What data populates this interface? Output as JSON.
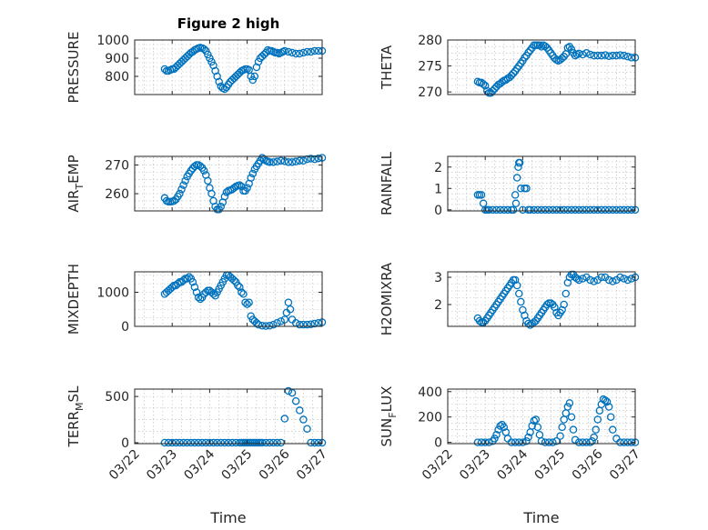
{
  "marker_color": "#0072BD",
  "chart_data": [
    {
      "type": "scatter",
      "title": "Figure 2 high",
      "ylabel": "PRESSURE",
      "ylabel_sub": "",
      "ylabel_tail": "",
      "xlabel": "",
      "ylim": [
        700,
        1000
      ],
      "yticks": [
        800,
        900,
        1000
      ],
      "xlim": [
        0,
        5
      ],
      "xticks": [
        "03/22",
        "03/23",
        "03/24",
        "03/25",
        "03/26",
        "03/27"
      ],
      "x": [
        0.8,
        0.85,
        0.9,
        0.95,
        1.0,
        1.05,
        1.1,
        1.15,
        1.2,
        1.25,
        1.3,
        1.35,
        1.4,
        1.45,
        1.5,
        1.55,
        1.6,
        1.65,
        1.7,
        1.75,
        1.8,
        1.85,
        1.9,
        1.95,
        2.0,
        2.05,
        2.1,
        2.15,
        2.2,
        2.25,
        2.3,
        2.35,
        2.4,
        2.45,
        2.5,
        2.55,
        2.6,
        2.65,
        2.7,
        2.75,
        2.8,
        2.85,
        2.9,
        2.95,
        3.0,
        3.05,
        3.1,
        3.15,
        3.2,
        3.25,
        3.3,
        3.35,
        3.4,
        3.45,
        3.5,
        3.55,
        3.6,
        3.65,
        3.7,
        3.75,
        3.8,
        3.85,
        3.9,
        3.95,
        4.0,
        4.1,
        4.2,
        4.3,
        4.4,
        4.5,
        4.6,
        4.7,
        4.8,
        4.9,
        5.0
      ],
      "y": [
        840,
        830,
        830,
        835,
        840,
        840,
        850,
        860,
        870,
        880,
        890,
        900,
        910,
        920,
        930,
        935,
        945,
        950,
        955,
        958,
        955,
        950,
        940,
        920,
        900,
        880,
        860,
        830,
        800,
        770,
        745,
        735,
        730,
        740,
        755,
        770,
        780,
        790,
        800,
        810,
        820,
        830,
        835,
        840,
        840,
        835,
        800,
        780,
        800,
        850,
        880,
        900,
        910,
        920,
        930,
        945,
        940,
        940,
        935,
        930,
        930,
        925,
        930,
        935,
        940,
        935,
        930,
        925,
        925,
        930,
        935,
        935,
        940,
        940,
        940
      ]
    },
    {
      "type": "scatter",
      "title": "",
      "ylabel": "THETA",
      "ylabel_sub": "",
      "ylabel_tail": "",
      "xlabel": "",
      "ylim": [
        269.5,
        280
      ],
      "yticks": [
        270,
        275,
        280
      ],
      "xlim": [
        0,
        5
      ],
      "xticks": [
        "03/22",
        "03/23",
        "03/24",
        "03/25",
        "03/26",
        "03/27"
      ],
      "x": [
        0.8,
        0.85,
        0.9,
        0.95,
        1.0,
        1.05,
        1.1,
        1.15,
        1.2,
        1.25,
        1.3,
        1.35,
        1.4,
        1.45,
        1.5,
        1.55,
        1.6,
        1.65,
        1.7,
        1.75,
        1.8,
        1.85,
        1.9,
        1.95,
        2.0,
        2.05,
        2.1,
        2.15,
        2.2,
        2.25,
        2.3,
        2.35,
        2.4,
        2.45,
        2.5,
        2.55,
        2.6,
        2.65,
        2.7,
        2.75,
        2.8,
        2.85,
        2.9,
        2.95,
        3.0,
        3.05,
        3.1,
        3.15,
        3.2,
        3.25,
        3.3,
        3.35,
        3.4,
        3.45,
        3.5,
        3.6,
        3.7,
        3.8,
        3.9,
        4.0,
        4.1,
        4.2,
        4.3,
        4.4,
        4.5,
        4.6,
        4.7,
        4.8,
        4.9,
        5.0
      ],
      "y": [
        272,
        271.8,
        271.8,
        271.5,
        271.2,
        270.2,
        269.8,
        269.8,
        270.2,
        270.6,
        271,
        271.4,
        271.6,
        271.9,
        272.2,
        272.3,
        272.6,
        272.8,
        273.2,
        273.6,
        274,
        274.5,
        275,
        275.5,
        276,
        276.6,
        277,
        277.6,
        278,
        278.5,
        279,
        279,
        279,
        279,
        278.7,
        279,
        278.8,
        278.5,
        278,
        277.5,
        277,
        276.5,
        276.2,
        276,
        276.2,
        276.5,
        276.8,
        277.3,
        278.5,
        278.7,
        278.2,
        277.5,
        277,
        277.2,
        277.4,
        277.2,
        277.5,
        277.2,
        277,
        277,
        277,
        277.1,
        276.9,
        277,
        277,
        277.1,
        277,
        276.8,
        276.6,
        276.6
      ]
    },
    {
      "type": "scatter",
      "title": "",
      "ylabel": "AIR",
      "ylabel_sub": "T",
      "ylabel_tail": "EMP",
      "xlabel": "",
      "ylim": [
        254,
        273
      ],
      "yticks": [
        260,
        270
      ],
      "xlim": [
        0,
        5
      ],
      "xticks": [
        "03/22",
        "03/23",
        "03/24",
        "03/25",
        "03/26",
        "03/27"
      ],
      "x": [
        0.8,
        0.85,
        0.9,
        0.95,
        1.0,
        1.05,
        1.1,
        1.15,
        1.2,
        1.25,
        1.3,
        1.35,
        1.4,
        1.45,
        1.5,
        1.55,
        1.6,
        1.65,
        1.7,
        1.75,
        1.8,
        1.85,
        1.9,
        1.95,
        2.0,
        2.05,
        2.1,
        2.15,
        2.2,
        2.25,
        2.3,
        2.35,
        2.4,
        2.45,
        2.5,
        2.55,
        2.6,
        2.65,
        2.7,
        2.75,
        2.8,
        2.85,
        2.9,
        2.95,
        3.0,
        3.05,
        3.1,
        3.15,
        3.2,
        3.25,
        3.3,
        3.35,
        3.4,
        3.45,
        3.5,
        3.55,
        3.6,
        3.7,
        3.8,
        3.9,
        4.0,
        4.1,
        4.2,
        4.3,
        4.4,
        4.5,
        4.6,
        4.7,
        4.8,
        4.9,
        5.0
      ],
      "y": [
        258.5,
        257.5,
        257.2,
        257.2,
        257.3,
        257.5,
        258,
        259,
        260,
        261.5,
        263,
        264.5,
        266,
        267,
        268,
        268.8,
        269.5,
        270,
        270,
        269.6,
        269,
        268,
        266.5,
        264.5,
        262,
        260,
        257.5,
        255.5,
        254.5,
        254.5,
        255.5,
        257,
        259,
        260.5,
        261,
        261.2,
        261.5,
        262,
        262.5,
        262.8,
        263,
        262.5,
        261,
        261,
        262,
        263.5,
        265.5,
        267,
        268.5,
        269.5,
        270.5,
        271.5,
        272.5,
        272,
        271.5,
        271.2,
        271,
        271,
        271.2,
        271.5,
        271.3,
        271,
        271,
        271.2,
        271.5,
        271.5,
        272,
        272.2,
        272,
        272.3,
        272.5
      ]
    },
    {
      "type": "scatter",
      "title": "",
      "ylabel": "RAINFALL",
      "ylabel_sub": "",
      "ylabel_tail": "",
      "xlabel": "",
      "ylim": [
        -0.05,
        2.5
      ],
      "yticks": [
        0,
        1,
        2
      ],
      "xlim": [
        0,
        5
      ],
      "xticks": [
        "03/22",
        "03/23",
        "03/24",
        "03/25",
        "03/26",
        "03/27"
      ],
      "x": [
        0.8,
        0.85,
        0.9,
        0.95,
        1.0,
        1.05,
        1.1,
        1.2,
        1.3,
        1.4,
        1.5,
        1.6,
        1.7,
        1.75,
        1.8,
        1.82,
        1.85,
        1.88,
        1.9,
        1.92,
        1.95,
        2.0,
        2.05,
        2.1,
        2.15,
        2.2,
        2.3,
        2.4,
        2.5,
        2.6,
        2.7,
        2.8,
        2.9,
        3.0,
        3.1,
        3.2,
        3.3,
        3.4,
        3.5,
        3.6,
        3.7,
        3.8,
        3.9,
        4.0,
        4.1,
        4.2,
        4.3,
        4.4,
        4.5,
        4.6,
        4.7,
        4.8,
        4.9,
        5.0
      ],
      "y": [
        0.7,
        0.7,
        0.7,
        0.3,
        0,
        0,
        0,
        0,
        0,
        0,
        0,
        0,
        0,
        0,
        0.7,
        0.3,
        1.5,
        2,
        2.2,
        2.2,
        1,
        0,
        1,
        1,
        0,
        0,
        0,
        0,
        0,
        0,
        0,
        0,
        0,
        0,
        0,
        0,
        0,
        0,
        0,
        0,
        0,
        0,
        0,
        0,
        0,
        0,
        0,
        0,
        0,
        0,
        0,
        0,
        0,
        0
      ]
    },
    {
      "type": "scatter",
      "title": "",
      "ylabel": "MIXDEPTH",
      "ylabel_sub": "",
      "ylabel_tail": "",
      "xlabel": "",
      "ylim": [
        0,
        1600
      ],
      "yticks": [
        0,
        1000
      ],
      "xlim": [
        0,
        5
      ],
      "xticks": [
        "03/22",
        "03/23",
        "03/24",
        "03/25",
        "03/26",
        "03/27"
      ],
      "x": [
        0.8,
        0.85,
        0.9,
        0.95,
        1.0,
        1.05,
        1.1,
        1.15,
        1.2,
        1.25,
        1.3,
        1.35,
        1.4,
        1.45,
        1.5,
        1.55,
        1.6,
        1.65,
        1.7,
        1.75,
        1.8,
        1.85,
        1.9,
        1.95,
        2.0,
        2.05,
        2.1,
        2.15,
        2.2,
        2.25,
        2.3,
        2.35,
        2.4,
        2.45,
        2.5,
        2.55,
        2.6,
        2.65,
        2.7,
        2.75,
        2.8,
        2.85,
        2.9,
        2.95,
        3.0,
        3.05,
        3.1,
        3.15,
        3.2,
        3.25,
        3.3,
        3.4,
        3.5,
        3.6,
        3.7,
        3.8,
        3.9,
        4.0,
        4.05,
        4.1,
        4.15,
        4.2,
        4.3,
        4.4,
        4.5,
        4.6,
        4.7,
        4.8,
        4.9,
        5.0
      ],
      "y": [
        950,
        1000,
        1050,
        1100,
        1150,
        1200,
        1200,
        1250,
        1300,
        1300,
        1350,
        1400,
        1400,
        1450,
        1400,
        1300,
        1150,
        1000,
        850,
        800,
        850,
        950,
        1000,
        1050,
        1050,
        1000,
        950,
        900,
        1000,
        1100,
        1200,
        1300,
        1400,
        1500,
        1500,
        1450,
        1400,
        1350,
        1300,
        1200,
        1150,
        1000,
        950,
        700,
        650,
        700,
        300,
        200,
        150,
        100,
        50,
        20,
        10,
        20,
        50,
        100,
        150,
        200,
        400,
        700,
        500,
        200,
        100,
        50,
        50,
        50,
        60,
        80,
        100,
        120
      ]
    },
    {
      "type": "scatter",
      "title": "",
      "ylabel": "H2OMIXRA",
      "ylabel_sub": "",
      "ylabel_tail": "",
      "xlabel": "",
      "ylim": [
        1.2,
        3.2
      ],
      "yticks": [
        2,
        3
      ],
      "xlim": [
        0,
        5
      ],
      "xticks": [
        "03/22",
        "03/23",
        "03/24",
        "03/25",
        "03/26",
        "03/27"
      ],
      "x": [
        0.8,
        0.85,
        0.9,
        0.95,
        1.0,
        1.05,
        1.1,
        1.15,
        1.2,
        1.25,
        1.3,
        1.35,
        1.4,
        1.45,
        1.5,
        1.55,
        1.6,
        1.65,
        1.7,
        1.75,
        1.8,
        1.85,
        1.9,
        1.95,
        2.0,
        2.05,
        2.1,
        2.15,
        2.2,
        2.25,
        2.3,
        2.35,
        2.4,
        2.45,
        2.5,
        2.55,
        2.6,
        2.65,
        2.7,
        2.75,
        2.8,
        2.85,
        2.9,
        2.95,
        3.0,
        3.05,
        3.1,
        3.15,
        3.2,
        3.25,
        3.3,
        3.35,
        3.4,
        3.45,
        3.5,
        3.6,
        3.7,
        3.8,
        3.9,
        4.0,
        4.1,
        4.2,
        4.3,
        4.4,
        4.5,
        4.6,
        4.7,
        4.8,
        4.9,
        5.0
      ],
      "y": [
        1.5,
        1.4,
        1.35,
        1.35,
        1.4,
        1.5,
        1.6,
        1.7,
        1.8,
        1.9,
        2.0,
        2.1,
        2.2,
        2.3,
        2.4,
        2.5,
        2.6,
        2.7,
        2.8,
        2.9,
        2.9,
        2.7,
        2.4,
        2.1,
        1.8,
        1.6,
        1.4,
        1.3,
        1.25,
        1.3,
        1.35,
        1.4,
        1.5,
        1.6,
        1.7,
        1.8,
        1.9,
        2.0,
        2.05,
        2.05,
        2.0,
        1.9,
        1.7,
        1.6,
        1.7,
        1.8,
        2.0,
        2.4,
        2.8,
        3.0,
        3.1,
        3.1,
        3.0,
        2.95,
        2.9,
        2.95,
        3.0,
        2.9,
        2.85,
        2.9,
        3.0,
        3.0,
        2.9,
        2.85,
        2.9,
        3.0,
        2.95,
        2.9,
        2.95,
        3.0
      ]
    },
    {
      "type": "scatter",
      "title": "",
      "ylabel": "TERR",
      "ylabel_sub": "M",
      "ylabel_tail": "SL",
      "xlabel": "Time",
      "ylim": [
        -10,
        580
      ],
      "yticks": [
        0,
        500
      ],
      "xlim": [
        0,
        5
      ],
      "xticks": [
        "03/22",
        "03/23",
        "03/24",
        "03/25",
        "03/26",
        "03/27"
      ],
      "x": [
        0.8,
        0.9,
        1.0,
        1.1,
        1.2,
        1.3,
        1.4,
        1.5,
        1.6,
        1.7,
        1.8,
        1.9,
        2.0,
        2.1,
        2.2,
        2.3,
        2.4,
        2.5,
        2.6,
        2.7,
        2.8,
        2.85,
        2.9,
        2.95,
        3.0,
        3.05,
        3.1,
        3.15,
        3.2,
        3.25,
        3.3,
        3.35,
        3.4,
        3.5,
        3.6,
        3.7,
        3.8,
        3.9,
        4.0,
        4.1,
        4.2,
        4.3,
        4.4,
        4.5,
        4.6,
        4.7,
        4.8,
        4.9,
        5.0
      ],
      "y": [
        0,
        0,
        0,
        0,
        0,
        0,
        0,
        0,
        0,
        0,
        0,
        0,
        0,
        0,
        0,
        0,
        0,
        0,
        0,
        0,
        0,
        0,
        0,
        0,
        0,
        0,
        0,
        0,
        0,
        0,
        0,
        0,
        0,
        0,
        0,
        0,
        0,
        0,
        260,
        560,
        540,
        450,
        350,
        250,
        150,
        0,
        0,
        0,
        0
      ]
    },
    {
      "type": "scatter",
      "title": "",
      "ylabel": "SUN",
      "ylabel_sub": "F",
      "ylabel_tail": "LUX",
      "xlabel": "Time",
      "ylim": [
        -10,
        420
      ],
      "yticks": [
        0,
        200,
        400
      ],
      "xlim": [
        0,
        5
      ],
      "xticks": [
        "03/22",
        "03/23",
        "03/24",
        "03/25",
        "03/26",
        "03/27"
      ],
      "x": [
        0.8,
        0.9,
        1.0,
        1.1,
        1.2,
        1.25,
        1.3,
        1.35,
        1.4,
        1.45,
        1.5,
        1.55,
        1.6,
        1.7,
        1.8,
        1.9,
        2.0,
        2.1,
        2.15,
        2.2,
        2.25,
        2.3,
        2.35,
        2.4,
        2.45,
        2.5,
        2.6,
        2.7,
        2.8,
        2.9,
        3.0,
        3.05,
        3.1,
        3.15,
        3.2,
        3.25,
        3.3,
        3.35,
        3.4,
        3.5,
        3.6,
        3.7,
        3.8,
        3.85,
        3.9,
        3.95,
        4.0,
        4.05,
        4.1,
        4.15,
        4.2,
        4.25,
        4.3,
        4.35,
        4.4,
        4.5,
        4.6,
        4.7,
        4.8,
        4.9,
        5.0
      ],
      "y": [
        0,
        0,
        0,
        0,
        10,
        30,
        60,
        100,
        130,
        140,
        120,
        80,
        30,
        0,
        0,
        0,
        0,
        10,
        40,
        80,
        130,
        170,
        180,
        120,
        60,
        10,
        0,
        0,
        0,
        10,
        50,
        120,
        180,
        230,
        280,
        310,
        200,
        100,
        20,
        0,
        0,
        0,
        0,
        10,
        40,
        100,
        180,
        250,
        300,
        340,
        330,
        320,
        280,
        200,
        100,
        30,
        0,
        0,
        0,
        0,
        0
      ]
    }
  ]
}
